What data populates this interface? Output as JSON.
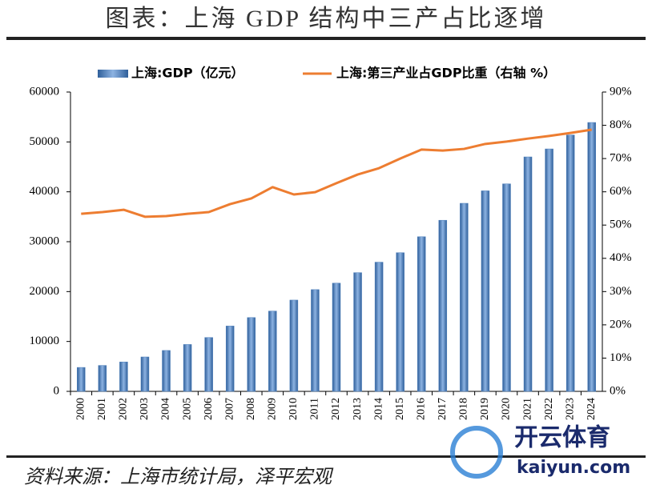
{
  "chart_data": {
    "type": "bar-line",
    "title": "图表：上海 GDP 结构中三产占比逐增",
    "source": "资料来源：上海市统计局，泽平宏观",
    "categories": [
      "2000",
      "2001",
      "2002",
      "2003",
      "2004",
      "2005",
      "2006",
      "2007",
      "2008",
      "2009",
      "2010",
      "2011",
      "2012",
      "2013",
      "2014",
      "2015",
      "2016",
      "2017",
      "2018",
      "2019",
      "2020",
      "2021",
      "2022",
      "2023",
      "2024"
    ],
    "series": [
      {
        "name": "上海:GDP（亿元）",
        "type": "bar",
        "color": "#4f81bd",
        "values": [
          4800,
          5200,
          5900,
          6900,
          8200,
          9400,
          10800,
          13100,
          14800,
          16100,
          18300,
          20400,
          21700,
          23800,
          25900,
          27800,
          31000,
          34300,
          37700,
          40200,
          41600,
          47000,
          48600,
          51400,
          53900
        ]
      },
      {
        "name": "上海:第三产业占GDP比重（右轴 %）",
        "type": "line",
        "color": "#ed7d31",
        "axis": "y2",
        "values": [
          53.4,
          53.9,
          54.6,
          52.5,
          52.7,
          53.4,
          53.9,
          56.3,
          58.0,
          61.4,
          59.2,
          59.9,
          62.6,
          65.2,
          67.1,
          70.0,
          72.7,
          72.4,
          72.9,
          74.4,
          75.1,
          76.0,
          76.8,
          77.7,
          78.7
        ]
      }
    ],
    "ylim": [
      0,
      60000
    ],
    "yticks": [
      0,
      10000,
      20000,
      30000,
      40000,
      50000,
      60000
    ],
    "y2lim": [
      0,
      90
    ],
    "y2ticks": [
      {
        "value": 0,
        "label": "0%"
      },
      {
        "value": 10,
        "label": "10%"
      },
      {
        "value": 20,
        "label": "20%"
      },
      {
        "value": 30,
        "label": "30%"
      },
      {
        "value": 40,
        "label": "40%"
      },
      {
        "value": 50,
        "label": "50%"
      },
      {
        "value": 60,
        "label": "60%"
      },
      {
        "value": 70,
        "label": "70%"
      },
      {
        "value": 80,
        "label": "80%"
      },
      {
        "value": 90,
        "label": "90%"
      }
    ],
    "legend": "top",
    "grid": false
  },
  "watermark": {
    "brand": "开云体育",
    "url": "kaiyun.com"
  }
}
